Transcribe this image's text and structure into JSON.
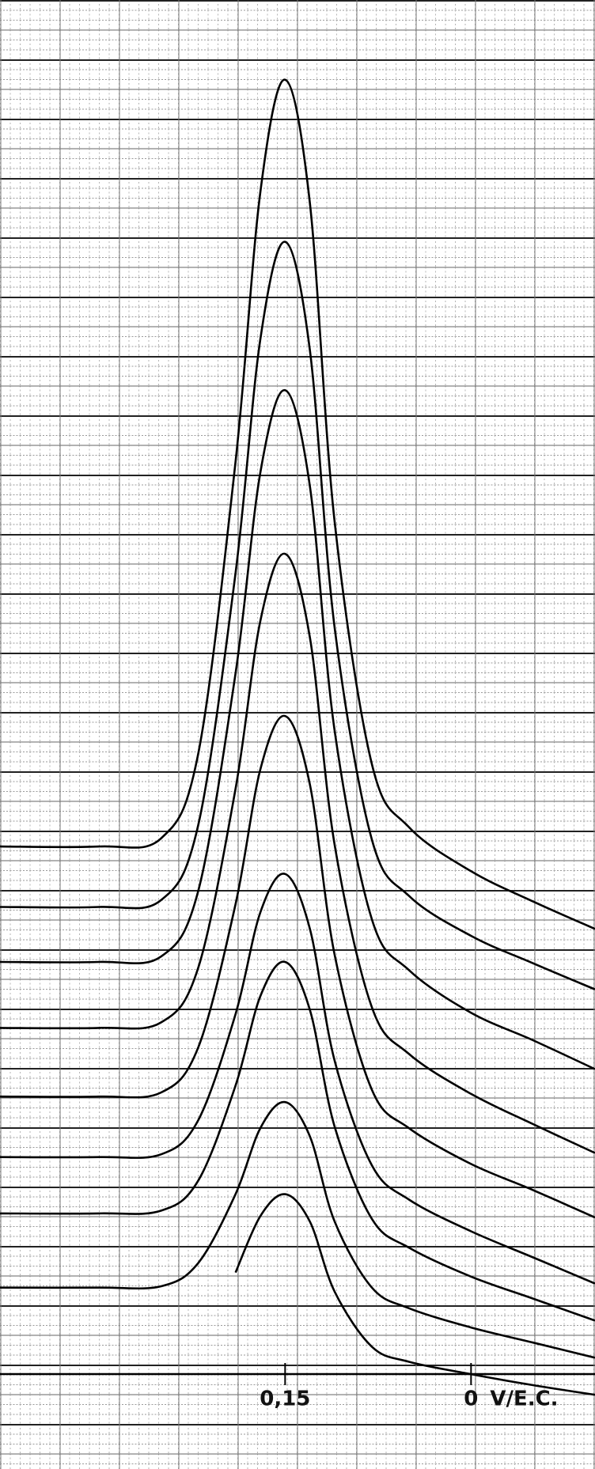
{
  "chart_data": {
    "type": "line",
    "color": "#000000",
    "grid": true,
    "x_label": "V/E.C.",
    "xlim": [
      0.38,
      -0.1
    ],
    "ylim": [
      -5,
      100
    ],
    "xticks": [
      {
        "value": 0.15,
        "label": "0,15"
      },
      0
    ],
    "x": [
      0.38,
      0.3,
      0.25,
      0.22,
      0.19,
      0.17,
      0.15,
      0.13,
      0.11,
      0.08,
      0.05,
      0.0,
      -0.05,
      -0.1
    ],
    "series": [
      {
        "values": [
          38.4,
          38.4,
          39.0,
          45.2,
          66.4,
          86.0,
          94.2,
          85.2,
          62.0,
          44.4,
          39.8,
          36.6,
          34.4,
          32.4
        ]
      },
      {
        "values": [
          34.0,
          34.0,
          34.5,
          40.0,
          58.3,
          75.3,
          82.4,
          74.5,
          54.3,
          38.9,
          34.8,
          31.9,
          29.9,
          28.0
        ]
      },
      {
        "values": [
          30.0,
          30.0,
          30.4,
          35.2,
          51.0,
          65.6,
          71.6,
          64.6,
          46.8,
          33.1,
          29.4,
          26.3,
          24.3,
          22.2
        ]
      },
      {
        "values": [
          25.2,
          25.2,
          25.6,
          29.6,
          42.6,
          54.8,
          59.7,
          53.6,
          38.5,
          26.7,
          23.3,
          20.4,
          18.2,
          16.1
        ]
      },
      {
        "values": [
          20.2,
          20.2,
          20.5,
          23.8,
          34.2,
          44.0,
          47.9,
          42.9,
          30.5,
          20.7,
          17.9,
          15.3,
          13.4,
          11.4
        ]
      },
      {
        "values": [
          15.8,
          15.8,
          16.0,
          18.5,
          26.2,
          33.6,
          36.4,
          32.4,
          22.8,
          15.2,
          12.7,
          10.4,
          8.5,
          6.6
        ]
      },
      {
        "values": [
          11.7,
          11.7,
          11.9,
          14.1,
          21.0,
          27.5,
          30.0,
          26.5,
          18.0,
          11.3,
          9.2,
          7.1,
          5.5,
          3.9
        ]
      },
      {
        "values": [
          6.3,
          6.3,
          6.4,
          8.1,
          13.1,
          17.9,
          19.8,
          17.3,
          11.1,
          6.3,
          4.8,
          3.4,
          2.3,
          1.2
        ]
      },
      {
        "values": [
          null,
          null,
          null,
          null,
          7.4,
          11.5,
          13.1,
          11.1,
          6.0,
          2.0,
          0.9,
          0.0,
          -0.8,
          -1.5
        ]
      }
    ]
  }
}
